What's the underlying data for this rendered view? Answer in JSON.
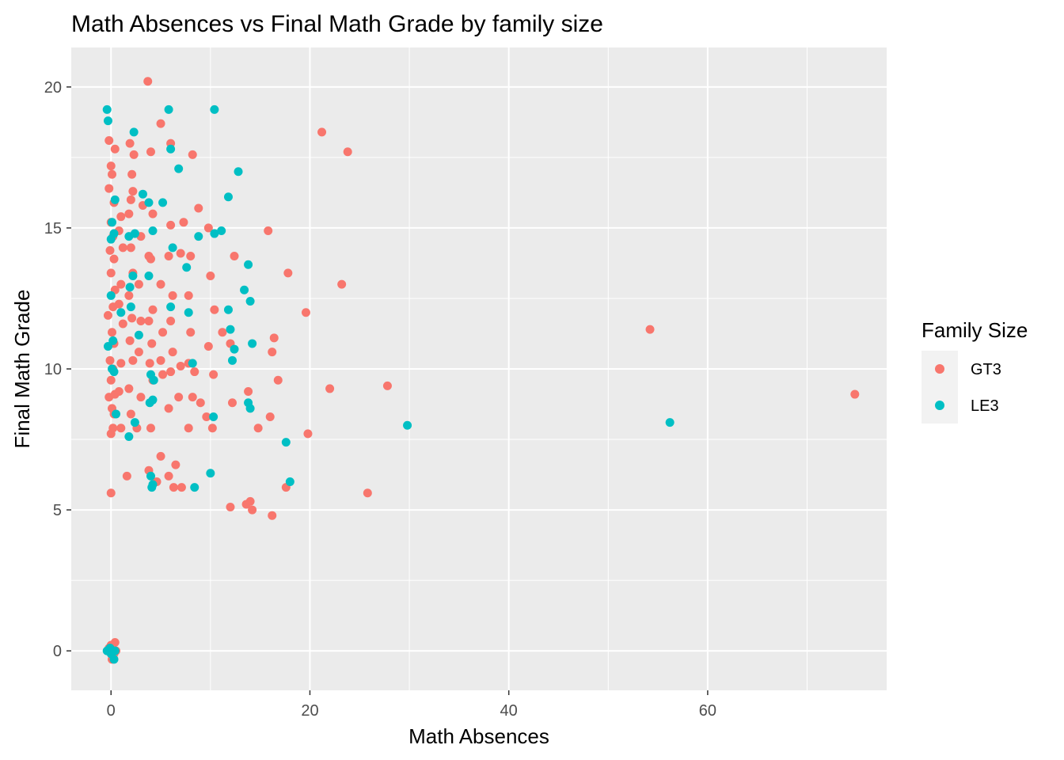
{
  "chart_data": {
    "type": "scatter",
    "title": "Math Absences vs Final Math Grade by family size",
    "xlabel": "Math Absences",
    "ylabel": "Final Math Grade",
    "xlim": [
      -4,
      78
    ],
    "ylim": [
      -1.4,
      21.4
    ],
    "x_ticks": [
      0,
      20,
      40,
      60
    ],
    "x_tick_labels": [
      "0",
      "20",
      "40",
      "60"
    ],
    "y_ticks": [
      0,
      5,
      10,
      15,
      20
    ],
    "y_tick_labels": [
      "0",
      "5",
      "10",
      "15",
      "20"
    ],
    "grid": true,
    "legend_position": "right",
    "legend_title": "Family Size",
    "series": [
      {
        "name": "GT3",
        "color": "#F8766D",
        "points": [
          [
            0.0,
            0.2
          ],
          [
            0.3,
            -0.1
          ],
          [
            0.1,
            -0.3
          ],
          [
            -0.2,
            0.1
          ],
          [
            0.4,
            0.3
          ],
          [
            0.2,
            -0.2
          ],
          [
            0.5,
            0.0
          ],
          [
            0.1,
            0.2
          ],
          [
            0.0,
            5.6
          ],
          [
            0.0,
            7.7
          ],
          [
            0.2,
            7.9
          ],
          [
            0.3,
            8.4
          ],
          [
            0.1,
            8.6
          ],
          [
            -0.2,
            9.0
          ],
          [
            0.4,
            9.1
          ],
          [
            0.0,
            9.6
          ],
          [
            0.2,
            10.0
          ],
          [
            -0.1,
            10.3
          ],
          [
            0.3,
            10.9
          ],
          [
            0.1,
            11.3
          ],
          [
            -0.3,
            11.9
          ],
          [
            0.2,
            12.2
          ],
          [
            0.4,
            12.8
          ],
          [
            0.0,
            13.4
          ],
          [
            0.3,
            13.9
          ],
          [
            -0.1,
            14.2
          ],
          [
            0.2,
            14.7
          ],
          [
            0.0,
            15.2
          ],
          [
            0.3,
            15.9
          ],
          [
            -0.2,
            16.4
          ],
          [
            0.1,
            16.9
          ],
          [
            0.0,
            17.2
          ],
          [
            0.4,
            17.8
          ],
          [
            -0.2,
            18.1
          ],
          [
            1.0,
            7.9
          ],
          [
            0.8,
            9.2
          ],
          [
            1.0,
            10.2
          ],
          [
            1.2,
            11.6
          ],
          [
            0.8,
            12.3
          ],
          [
            1.0,
            13.0
          ],
          [
            1.2,
            14.3
          ],
          [
            0.8,
            14.9
          ],
          [
            1.0,
            15.4
          ],
          [
            1.6,
            6.2
          ],
          [
            2.0,
            8.4
          ],
          [
            1.8,
            9.3
          ],
          [
            2.2,
            10.3
          ],
          [
            1.9,
            11.0
          ],
          [
            2.1,
            11.8
          ],
          [
            1.8,
            12.6
          ],
          [
            2.2,
            13.4
          ],
          [
            2.0,
            14.3
          ],
          [
            1.8,
            15.5
          ],
          [
            2.0,
            16.0
          ],
          [
            2.2,
            16.3
          ],
          [
            2.1,
            16.9
          ],
          [
            2.3,
            17.6
          ],
          [
            1.9,
            18.0
          ],
          [
            2.6,
            7.9
          ],
          [
            3.0,
            9.0
          ],
          [
            2.8,
            10.6
          ],
          [
            3.0,
            11.7
          ],
          [
            2.8,
            13.0
          ],
          [
            3.0,
            14.7
          ],
          [
            3.2,
            15.8
          ],
          [
            3.8,
            6.4
          ],
          [
            4.0,
            7.9
          ],
          [
            4.2,
            9.6
          ],
          [
            3.9,
            10.2
          ],
          [
            4.1,
            10.9
          ],
          [
            3.8,
            11.7
          ],
          [
            4.2,
            12.1
          ],
          [
            4.0,
            13.9
          ],
          [
            3.8,
            14.0
          ],
          [
            4.2,
            15.5
          ],
          [
            4.0,
            17.7
          ],
          [
            3.7,
            20.2
          ],
          [
            4.6,
            6.0
          ],
          [
            5.0,
            6.9
          ],
          [
            5.2,
            9.8
          ],
          [
            5.0,
            10.3
          ],
          [
            5.2,
            11.3
          ],
          [
            5.0,
            13.0
          ],
          [
            5.0,
            18.7
          ],
          [
            5.8,
            8.6
          ],
          [
            5.8,
            6.2
          ],
          [
            6.0,
            9.9
          ],
          [
            6.2,
            10.6
          ],
          [
            6.0,
            11.7
          ],
          [
            6.2,
            12.6
          ],
          [
            5.8,
            14.0
          ],
          [
            6.0,
            15.1
          ],
          [
            6.0,
            18.0
          ],
          [
            6.3,
            5.8
          ],
          [
            6.5,
            6.6
          ],
          [
            6.8,
            9.0
          ],
          [
            7.0,
            10.1
          ],
          [
            7.0,
            14.1
          ],
          [
            7.3,
            15.2
          ],
          [
            7.1,
            5.8
          ],
          [
            7.8,
            7.9
          ],
          [
            7.8,
            10.2
          ],
          [
            8.0,
            11.3
          ],
          [
            7.8,
            12.6
          ],
          [
            8.0,
            14.0
          ],
          [
            8.2,
            9.0
          ],
          [
            8.2,
            17.6
          ],
          [
            8.4,
            9.9
          ],
          [
            8.8,
            15.7
          ],
          [
            9.0,
            8.8
          ],
          [
            9.6,
            8.3
          ],
          [
            9.8,
            10.8
          ],
          [
            10.0,
            13.3
          ],
          [
            9.8,
            15.0
          ],
          [
            10.2,
            7.9
          ],
          [
            10.3,
            9.8
          ],
          [
            10.4,
            12.1
          ],
          [
            11.2,
            11.3
          ],
          [
            12.0,
            5.1
          ],
          [
            12.2,
            8.8
          ],
          [
            12.0,
            10.9
          ],
          [
            12.4,
            14.0
          ],
          [
            13.8,
            9.2
          ],
          [
            13.6,
            5.2
          ],
          [
            14.0,
            5.3
          ],
          [
            14.2,
            5.0
          ],
          [
            14.8,
            7.9
          ],
          [
            16.0,
            8.3
          ],
          [
            16.2,
            10.6
          ],
          [
            16.4,
            11.1
          ],
          [
            16.2,
            4.8
          ],
          [
            15.8,
            14.9
          ],
          [
            16.8,
            9.6
          ],
          [
            17.6,
            5.8
          ],
          [
            17.8,
            13.4
          ],
          [
            19.6,
            12.0
          ],
          [
            19.8,
            7.7
          ],
          [
            22.0,
            9.3
          ],
          [
            21.2,
            18.4
          ],
          [
            23.8,
            17.7
          ],
          [
            23.2,
            13.0
          ],
          [
            25.8,
            5.6
          ],
          [
            27.8,
            9.4
          ],
          [
            54.2,
            11.4
          ],
          [
            74.8,
            9.1
          ]
        ]
      },
      {
        "name": "LE3",
        "color": "#00BFC4",
        "points": [
          [
            -0.4,
            0.0
          ],
          [
            0.0,
            -0.1
          ],
          [
            0.3,
            -0.3
          ],
          [
            -0.1,
            0.1
          ],
          [
            0.4,
            0.0
          ],
          [
            -0.3,
            10.8
          ],
          [
            0.1,
            10.0
          ],
          [
            0.3,
            9.9
          ],
          [
            0.2,
            11.0
          ],
          [
            0.0,
            12.6
          ],
          [
            0.3,
            14.8
          ],
          [
            0.1,
            15.2
          ],
          [
            0.0,
            14.6
          ],
          [
            0.4,
            16.0
          ],
          [
            -0.3,
            18.8
          ],
          [
            -0.4,
            19.2
          ],
          [
            0.5,
            8.4
          ],
          [
            1.0,
            12.0
          ],
          [
            1.8,
            7.6
          ],
          [
            2.0,
            12.2
          ],
          [
            1.9,
            12.9
          ],
          [
            2.2,
            13.3
          ],
          [
            1.8,
            14.7
          ],
          [
            2.4,
            14.8
          ],
          [
            2.3,
            18.4
          ],
          [
            2.4,
            8.1
          ],
          [
            2.8,
            11.2
          ],
          [
            3.2,
            16.2
          ],
          [
            3.8,
            13.3
          ],
          [
            4.0,
            9.8
          ],
          [
            3.9,
            8.8
          ],
          [
            4.2,
            8.9
          ],
          [
            4.3,
            9.6
          ],
          [
            4.1,
            5.8
          ],
          [
            4.2,
            5.9
          ],
          [
            4.0,
            6.2
          ],
          [
            4.2,
            14.9
          ],
          [
            3.8,
            15.9
          ],
          [
            5.2,
            15.9
          ],
          [
            6.0,
            12.2
          ],
          [
            6.2,
            14.3
          ],
          [
            5.8,
            19.2
          ],
          [
            6.0,
            17.8
          ],
          [
            6.8,
            17.1
          ],
          [
            7.8,
            12.0
          ],
          [
            7.6,
            13.6
          ],
          [
            8.2,
            10.2
          ],
          [
            8.4,
            5.8
          ],
          [
            8.8,
            14.7
          ],
          [
            10.0,
            6.3
          ],
          [
            10.3,
            8.3
          ],
          [
            10.4,
            14.8
          ],
          [
            10.4,
            19.2
          ],
          [
            11.1,
            14.9
          ],
          [
            11.8,
            16.1
          ],
          [
            11.8,
            12.1
          ],
          [
            12.0,
            11.4
          ],
          [
            12.2,
            10.3
          ],
          [
            12.4,
            10.7
          ],
          [
            12.8,
            17.0
          ],
          [
            13.4,
            12.8
          ],
          [
            13.8,
            13.7
          ],
          [
            14.0,
            12.4
          ],
          [
            13.8,
            8.8
          ],
          [
            14.0,
            8.6
          ],
          [
            14.2,
            10.9
          ],
          [
            17.6,
            7.4
          ],
          [
            18.0,
            6.0
          ],
          [
            29.8,
            8.0
          ],
          [
            56.2,
            8.1
          ]
        ]
      }
    ]
  }
}
